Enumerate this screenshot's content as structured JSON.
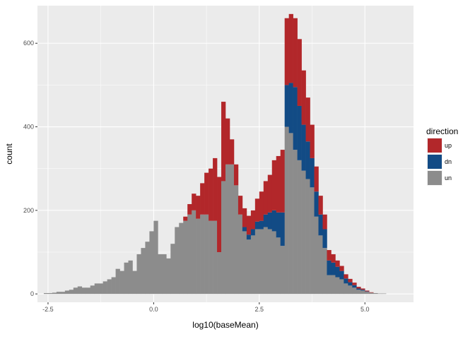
{
  "chart_data": {
    "type": "bar",
    "subtype": "stacked-histogram",
    "xlabel": "log10(baseMean)",
    "ylabel": "count",
    "xlim": [
      -2.75,
      6.15
    ],
    "ylim": [
      -20,
      690
    ],
    "x_ticks": [
      -2.5,
      0.0,
      2.5,
      5.0
    ],
    "x_tick_labels": [
      "-2.5",
      "0.0",
      "2.5",
      "5.0"
    ],
    "y_ticks": [
      0,
      200,
      400,
      600
    ],
    "y_tick_labels": [
      "0",
      "200",
      "400",
      "600"
    ],
    "grid": true,
    "legend": {
      "title": "direction",
      "position": "right"
    },
    "bin_width": 0.1,
    "bin_start": -2.6,
    "series": [
      {
        "name": "up",
        "color": "#B2272A",
        "values": [
          0,
          0,
          0,
          0,
          0,
          0,
          0,
          0,
          0,
          0,
          0,
          0,
          0,
          0,
          0,
          0,
          0,
          0,
          0,
          0,
          0,
          0,
          0,
          0,
          0,
          0,
          0,
          0,
          0,
          0,
          0,
          0,
          0,
          10,
          25,
          40,
          55,
          75,
          100,
          125,
          150,
          180,
          190,
          110,
          60,
          50,
          45,
          45,
          45,
          45,
          55,
          70,
          80,
          90,
          120,
          135,
          150,
          160,
          165,
          165,
          160,
          130,
          105,
          80,
          60,
          45,
          35,
          25,
          20,
          15,
          12,
          10,
          8,
          6,
          4,
          3,
          2,
          1,
          0,
          0,
          0,
          0,
          0,
          0,
          0,
          0,
          0,
          0,
          0,
          0
        ]
      },
      {
        "name": "dn",
        "color": "#124B85",
        "values": [
          0,
          0,
          0,
          0,
          0,
          0,
          0,
          0,
          0,
          0,
          0,
          0,
          0,
          0,
          0,
          0,
          0,
          0,
          0,
          0,
          0,
          0,
          0,
          0,
          0,
          0,
          0,
          0,
          0,
          0,
          0,
          0,
          0,
          0,
          0,
          0,
          0,
          0,
          0,
          0,
          0,
          0,
          0,
          0,
          0,
          0,
          0,
          10,
          12,
          15,
          18,
          20,
          30,
          40,
          50,
          60,
          80,
          100,
          120,
          150,
          130,
          110,
          90,
          70,
          60,
          50,
          45,
          35,
          30,
          25,
          20,
          12,
          8,
          6,
          3,
          2,
          1,
          0,
          0,
          0,
          0,
          0,
          0,
          0,
          0,
          0,
          0,
          0,
          0,
          0
        ]
      },
      {
        "name": "un",
        "color": "#8C8C8C",
        "values": [
          2,
          2,
          3,
          5,
          5,
          8,
          10,
          15,
          18,
          15,
          15,
          20,
          25,
          25,
          30,
          35,
          40,
          60,
          55,
          75,
          80,
          55,
          95,
          110,
          125,
          150,
          175,
          95,
          95,
          85,
          120,
          160,
          170,
          175,
          190,
          200,
          180,
          190,
          190,
          175,
          175,
          100,
          270,
          310,
          310,
          260,
          190,
          150,
          130,
          140,
          155,
          155,
          160,
          155,
          150,
          135,
          115,
          400,
          385,
          345,
          320,
          295,
          275,
          255,
          185,
          140,
          110,
          45,
          45,
          40,
          35,
          25,
          20,
          15,
          10,
          8,
          5,
          3,
          2,
          1,
          1,
          0,
          0,
          0,
          0,
          0,
          0,
          0,
          0,
          0
        ]
      }
    ]
  }
}
